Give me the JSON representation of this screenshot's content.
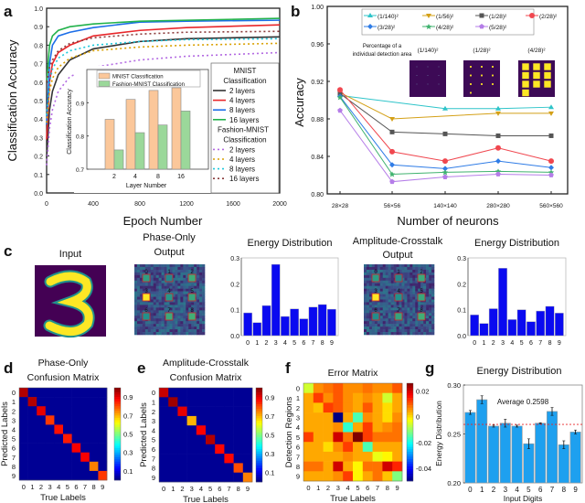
{
  "chart_data": [
    {
      "panel": "a",
      "type": "line",
      "xlabel": "Epoch Number",
      "ylabel": "Classification Accuracy",
      "xlim": [
        0,
        2000
      ],
      "ylim": [
        0.0,
        1.0
      ],
      "xticks": [
        "0",
        "400",
        "800",
        "1200",
        "1600",
        "2000"
      ],
      "yticks": [
        "0.0",
        "0.1",
        "0.2",
        "0.3",
        "0.4",
        "0.5",
        "0.6",
        "0.7",
        "0.8",
        "0.9",
        "1.0"
      ],
      "x": [
        0,
        25,
        50,
        100,
        200,
        400,
        800,
        1200,
        2000
      ],
      "legend_placement": "right",
      "legend_groups": [
        {
          "title1": "MNIST",
          "title2": "Classification"
        },
        {
          "title1": "Fashion-MNIST",
          "title2": "Classification"
        }
      ],
      "series": [
        {
          "name": "2 layers",
          "group": 0,
          "dashed": false,
          "color": "#333333",
          "values": [
            0.19,
            0.45,
            0.55,
            0.64,
            0.72,
            0.78,
            0.82,
            0.835,
            0.845
          ]
        },
        {
          "name": "4 layers",
          "group": 0,
          "dashed": false,
          "color": "#e8262a",
          "values": [
            0.29,
            0.6,
            0.7,
            0.76,
            0.8,
            0.85,
            0.88,
            0.895,
            0.91
          ]
        },
        {
          "name": "8 layers",
          "group": 0,
          "dashed": false,
          "color": "#1c6ee8",
          "values": [
            0.37,
            0.7,
            0.8,
            0.85,
            0.87,
            0.895,
            0.925,
            0.93,
            0.935
          ]
        },
        {
          "name": "16 layers",
          "group": 0,
          "dashed": false,
          "color": "#22b24c",
          "values": [
            0.6,
            0.8,
            0.85,
            0.88,
            0.9,
            0.915,
            0.93,
            0.935,
            0.945
          ]
        },
        {
          "name": "2 layers",
          "group": 1,
          "dashed": true,
          "color": "#b36ae2",
          "values": [
            0.15,
            0.35,
            0.45,
            0.55,
            0.63,
            0.68,
            0.72,
            0.74,
            0.76
          ]
        },
        {
          "name": "4 layers",
          "group": 1,
          "dashed": true,
          "color": "#d9a000",
          "values": [
            0.38,
            0.55,
            0.62,
            0.68,
            0.73,
            0.77,
            0.79,
            0.8,
            0.81
          ]
        },
        {
          "name": "8 layers",
          "group": 1,
          "dashed": true,
          "color": "#1ec8dc",
          "values": [
            0.42,
            0.6,
            0.67,
            0.73,
            0.77,
            0.8,
            0.82,
            0.83,
            0.835
          ]
        },
        {
          "name": "16 layers",
          "group": 1,
          "dashed": true,
          "color": "#8b3a3a",
          "values": [
            0.6,
            0.68,
            0.72,
            0.77,
            0.81,
            0.84,
            0.86,
            0.87,
            0.875
          ]
        }
      ],
      "inset": {
        "type": "bar",
        "xlabel": "Layer Number",
        "ylabel": "Classification Accuracy",
        "ylim": [
          0.7,
          1.0
        ],
        "yticks": [
          "0.7",
          "0.8",
          "0.9"
        ],
        "categories": [
          "2",
          "4",
          "8",
          "16"
        ],
        "series": [
          {
            "name": "MNIST Classification",
            "color": "#fbc79a",
            "values": [
              0.85,
              0.91,
              0.937,
              0.945
            ]
          },
          {
            "name": "Fashion-MNIST Classification",
            "color": "#9bd89a",
            "values": [
              0.758,
              0.81,
              0.833,
              0.875
            ]
          }
        ]
      }
    },
    {
      "panel": "b",
      "type": "line",
      "xlabel": "Number of neurons",
      "ylabel": "Accuracy",
      "ylim": [
        0.8,
        1.0
      ],
      "yticks": [
        "0.80",
        "0.84",
        "0.88",
        "0.92",
        "0.96",
        "1.00"
      ],
      "categories": [
        "28×28",
        "56×56",
        "140×140",
        "280×280",
        "560×560"
      ],
      "legend_placement": "top",
      "series": [
        {
          "name": "(1/140)²",
          "color": "#2ec4c9",
          "marker": "triangle-up",
          "values": [
            0.905,
            null,
            0.891,
            0.891,
            0.8925
          ]
        },
        {
          "name": "(1/56)²",
          "color": "#d4a017",
          "marker": "triangle-down",
          "values": [
            0.908,
            0.88,
            null,
            0.886,
            0.886
          ]
        },
        {
          "name": "(1/28)²",
          "color": "#555555",
          "marker": "square",
          "values": [
            0.907,
            0.866,
            0.864,
            0.862,
            0.862
          ]
        },
        {
          "name": "(2/28)²",
          "color": "#f0474f",
          "marker": "circle",
          "values": [
            0.911,
            0.845,
            0.835,
            0.849,
            0.835
          ]
        },
        {
          "name": "(3/28)²",
          "color": "#2f7ce6",
          "marker": "diamond",
          "values": [
            0.904,
            0.831,
            0.827,
            0.835,
            0.828
          ]
        },
        {
          "name": "(4/28)²",
          "color": "#3fb26e",
          "marker": "star",
          "values": [
            0.903,
            0.821,
            0.823,
            0.824,
            0.823
          ]
        },
        {
          "name": "(5/28)²",
          "color": "#b57de8",
          "marker": "pentagon",
          "values": [
            0.889,
            0.813,
            0.818,
            0.821,
            0.82
          ]
        }
      ],
      "inset_caption_1": "Percentage of a",
      "inset_caption_2": "individual detection area",
      "inset_images": [
        {
          "label": "(1/140)²",
          "fraction": "1/140"
        },
        {
          "label": "(1/28)²",
          "fraction": "1/28"
        },
        {
          "label": "(4/28)²",
          "fraction": "4/28"
        }
      ]
    },
    {
      "panel": "c",
      "type": "bar",
      "input_title": "Input",
      "phase_title_1": "Phase-Only",
      "phase_title_2": "Output",
      "amp_title_1": "Amplitude-Crosstalk",
      "amp_title_2": "Output",
      "detector_labels": [
        "0",
        "1",
        "2",
        "3",
        "4",
        "5",
        "6",
        "7",
        "8",
        "9"
      ],
      "charts": [
        {
          "title": "Energy Distribution",
          "ylim": [
            0,
            0.3
          ],
          "yticks": [
            "0.0",
            "0.1",
            "0.2",
            "0.3"
          ],
          "categories": [
            "0",
            "1",
            "2",
            "3",
            "4",
            "5",
            "6",
            "7",
            "8",
            "9"
          ],
          "color": "#0a0af0",
          "values": [
            0.088,
            0.05,
            0.116,
            0.275,
            0.074,
            0.103,
            0.065,
            0.11,
            0.12,
            0.102
          ]
        },
        {
          "title": "Energy Distribution",
          "ylim": [
            0,
            0.3
          ],
          "yticks": [
            "0.0",
            "0.1",
            "0.2",
            "0.3"
          ],
          "categories": [
            "0",
            "1",
            "2",
            "3",
            "4",
            "5",
            "6",
            "7",
            "8",
            "9"
          ],
          "color": "#0a0af0",
          "values": [
            0.08,
            0.047,
            0.104,
            0.26,
            0.062,
            0.1,
            0.054,
            0.095,
            0.113,
            0.087
          ]
        }
      ]
    },
    {
      "panel": "d",
      "type": "heatmap",
      "title_1": "Phase-Only",
      "title_2": "Confusion Matrix",
      "xlabel": "True Labels",
      "ylabel": "Predicted  Labels",
      "labels": [
        "0",
        "1",
        "2",
        "3",
        "4",
        "5",
        "6",
        "7",
        "8",
        "9"
      ],
      "colorbar_ticks": [
        "0.9",
        "0.7",
        "0.5",
        "0.3",
        "0.1"
      ],
      "colorbar_range": [
        0.0,
        1.0
      ],
      "diagonal": [
        0.95,
        0.95,
        0.9,
        0.82,
        0.86,
        0.85,
        0.88,
        0.88,
        0.75,
        0.82
      ],
      "off_diagonal": 0.02
    },
    {
      "panel": "e",
      "type": "heatmap",
      "title_1": "Amplitude-Crosstalk",
      "title_2": "Confusion Matrix",
      "xlabel": "True Labels",
      "ylabel": "Predicted Labels",
      "labels": [
        "0",
        "1",
        "2",
        "3",
        "4",
        "5",
        "6",
        "7",
        "8",
        "9"
      ],
      "colorbar_ticks": [
        "0.9",
        "0.7",
        "0.5",
        "0.3",
        "0.1"
      ],
      "colorbar_range": [
        0.0,
        1.0
      ],
      "diagonal": [
        0.93,
        0.97,
        0.9,
        0.7,
        0.88,
        0.95,
        0.87,
        0.87,
        0.8,
        0.75
      ],
      "off_diagonal": 0.02
    },
    {
      "panel": "f",
      "type": "heatmap",
      "title": "Error Matrix",
      "xlabel": "True Labels",
      "ylabel": "Detection Regions",
      "labels": [
        "0",
        "1",
        "2",
        "3",
        "4",
        "5",
        "6",
        "7",
        "8",
        "9"
      ],
      "colorbar_ticks": [
        "0.02",
        "0",
        "-0.02",
        "-0.04"
      ],
      "colorbar_range": [
        -0.05,
        0.026
      ],
      "values": [
        [
          -0.006,
          0.006,
          0.008,
          0.01,
          0.006,
          0.006,
          0.008,
          0.006,
          0.006,
          0.01
        ],
        [
          0.004,
          0.012,
          0.006,
          0.01,
          0.006,
          0.004,
          0.006,
          0.004,
          -0.006,
          0.004
        ],
        [
          0.004,
          0.002,
          0.012,
          0.01,
          0.006,
          0.004,
          0.01,
          0.004,
          0.0,
          0.004
        ],
        [
          0.004,
          0.004,
          0.004,
          -0.05,
          0.004,
          -0.016,
          0.006,
          0.004,
          0.0,
          0.006
        ],
        [
          0.004,
          0.004,
          0.004,
          0.006,
          -0.018,
          0.004,
          0.012,
          0.004,
          0.006,
          0.008
        ],
        [
          0.012,
          0.004,
          0.004,
          0.02,
          0.008,
          0.026,
          0.012,
          0.008,
          0.008,
          0.008
        ],
        [
          0.004,
          0.004,
          0.0,
          0.006,
          0.012,
          0.004,
          -0.016,
          0.004,
          0.004,
          0.004
        ],
        [
          0.004,
          0.004,
          0.004,
          0.004,
          0.006,
          0.004,
          0.004,
          -0.004,
          -0.002,
          0.004
        ],
        [
          0.008,
          0.008,
          0.004,
          0.02,
          0.004,
          -0.002,
          0.008,
          0.008,
          0.02,
          0.014
        ],
        [
          0.004,
          0.004,
          0.004,
          0.006,
          0.012,
          -0.002,
          0.004,
          0.008,
          0.002,
          -0.012
        ]
      ]
    },
    {
      "panel": "g",
      "type": "bar",
      "title": "Energy Distribution",
      "xlabel": "Input Digits",
      "ylabel": "Energy Distribution",
      "ylim": [
        0.2,
        0.3
      ],
      "yticks": [
        "0.20",
        "0.25",
        "0.30"
      ],
      "categories": [
        "0",
        "1",
        "2",
        "3",
        "4",
        "5",
        "6",
        "7",
        "8",
        "9"
      ],
      "values": [
        0.272,
        0.285,
        0.258,
        0.261,
        0.258,
        0.24,
        0.261,
        0.273,
        0.239,
        0.252
      ],
      "errors": [
        0.002,
        0.004,
        0.001,
        0.004,
        0.001,
        0.005,
        0.0005,
        0.004,
        0.004,
        0.002
      ],
      "color": "#1ea0ef",
      "average": 0.2598,
      "average_label": "Average 0.2598",
      "average_color": "#e8262a"
    }
  ],
  "panel_labels": [
    "a",
    "b",
    "c",
    "d",
    "e",
    "f",
    "g"
  ]
}
